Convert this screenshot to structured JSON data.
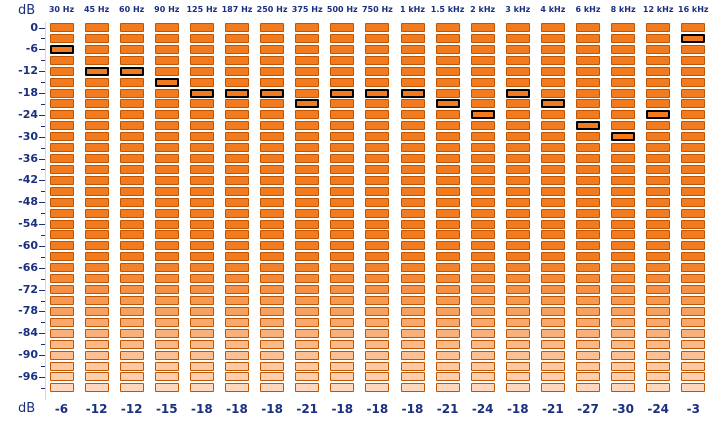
{
  "units": {
    "top": "dB",
    "bottom": "dB"
  },
  "colors": {
    "segment_hot": "#f27a1f",
    "segment_fade_end": "#ffd7bc",
    "segment_border": "#bf5500",
    "peak_border": "#000000",
    "label_color": "#1a2f80"
  },
  "level_range_db": [
    0,
    -100
  ],
  "segment_count": 34,
  "axis_labels": [
    "0",
    "-6",
    "-12",
    "-18",
    "-24",
    "-30",
    "-36",
    "-42",
    "-48",
    "-54",
    "-60",
    "-66",
    "-72",
    "-78",
    "-84",
    "-90",
    "-96"
  ],
  "bands": [
    {
      "freq": "30 Hz",
      "peak_db": -6,
      "value_text": "-6"
    },
    {
      "freq": "45 Hz",
      "peak_db": -12,
      "value_text": "-12"
    },
    {
      "freq": "60 Hz",
      "peak_db": -12,
      "value_text": "-12"
    },
    {
      "freq": "90 Hz",
      "peak_db": -15,
      "value_text": "-15"
    },
    {
      "freq": "125 Hz",
      "peak_db": -18,
      "value_text": "-18"
    },
    {
      "freq": "187 Hz",
      "peak_db": -18,
      "value_text": "-18"
    },
    {
      "freq": "250 Hz",
      "peak_db": -18,
      "value_text": "-18"
    },
    {
      "freq": "375 Hz",
      "peak_db": -21,
      "value_text": "-21"
    },
    {
      "freq": "500 Hz",
      "peak_db": -18,
      "value_text": "-18"
    },
    {
      "freq": "750 Hz",
      "peak_db": -18,
      "value_text": "-18"
    },
    {
      "freq": "1 kHz",
      "peak_db": -18,
      "value_text": "-18"
    },
    {
      "freq": "1.5 kHz",
      "peak_db": -21,
      "value_text": "-21"
    },
    {
      "freq": "2 kHz",
      "peak_db": -24,
      "value_text": "-24"
    },
    {
      "freq": "3 kHz",
      "peak_db": -18,
      "value_text": "-18"
    },
    {
      "freq": "4 kHz",
      "peak_db": -21,
      "value_text": "-21"
    },
    {
      "freq": "6 kHz",
      "peak_db": -27,
      "value_text": "-27"
    },
    {
      "freq": "8 kHz",
      "peak_db": -30,
      "value_text": "-30"
    },
    {
      "freq": "12 kHz",
      "peak_db": -24,
      "value_text": "-24"
    },
    {
      "freq": "16 kHz",
      "peak_db": -3,
      "value_text": "-3"
    }
  ]
}
